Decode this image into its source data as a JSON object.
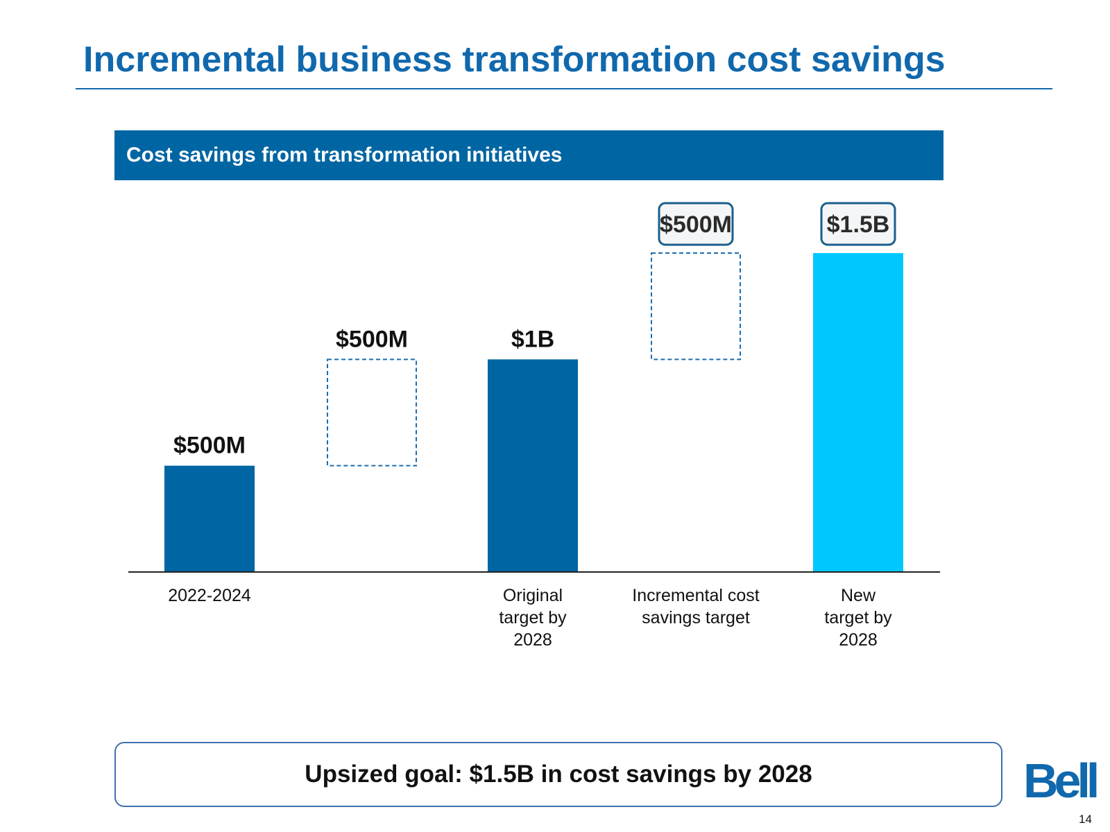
{
  "slide": {
    "title": "Incremental business transformation cost savings",
    "panel_title": "Cost savings from transformation initiatives",
    "goal_text": "Upsized goal: $1.5B in cost savings by 2028",
    "logo_text": "Bell",
    "page_number": "14"
  },
  "chart_data": {
    "type": "bar",
    "subtype": "waterfall",
    "title": "Cost savings from transformation initiatives",
    "xlabel": "",
    "ylabel": "",
    "units": "$M",
    "ylim": [
      0,
      1500
    ],
    "grid": false,
    "legend": "none",
    "bars": [
      {
        "category": [
          "2022-2024"
        ],
        "value": 500,
        "base": 0,
        "label": "$500M",
        "style": "solid",
        "label_style": "plain",
        "color": "#0065a3"
      },
      {
        "category": [],
        "value": 500,
        "base": 500,
        "label": "$500M",
        "style": "dashed",
        "label_style": "plain",
        "color": "#1b6db0"
      },
      {
        "category": [
          "Original",
          "target by",
          "2028"
        ],
        "value": 1000,
        "base": 0,
        "label": "$1B",
        "style": "solid",
        "label_style": "plain",
        "color": "#0065a3"
      },
      {
        "category": [
          "Incremental cost",
          "savings target"
        ],
        "value": 500,
        "base": 1000,
        "label": "$500M",
        "style": "dashed",
        "label_style": "boxed",
        "color": "#1b6db0"
      },
      {
        "category": [
          "New",
          "target by",
          "2028"
        ],
        "value": 1500,
        "base": 0,
        "label": "$1.5B",
        "style": "solid",
        "label_style": "boxed",
        "color": "#00c8ff"
      }
    ]
  },
  "colors": {
    "title": "#1068ad",
    "header_bar": "#0065a3",
    "bar_dark_blue": "#0065a3",
    "bar_cyan": "#00c8ff",
    "dashed_outline": "#1b6db0",
    "boxed_label_border": "#1b5e8c",
    "boxed_label_fill": "#f3f5f7",
    "goal_box_border": "#3d6fb0"
  },
  "icons": {
    "logo": "bell-logo"
  }
}
